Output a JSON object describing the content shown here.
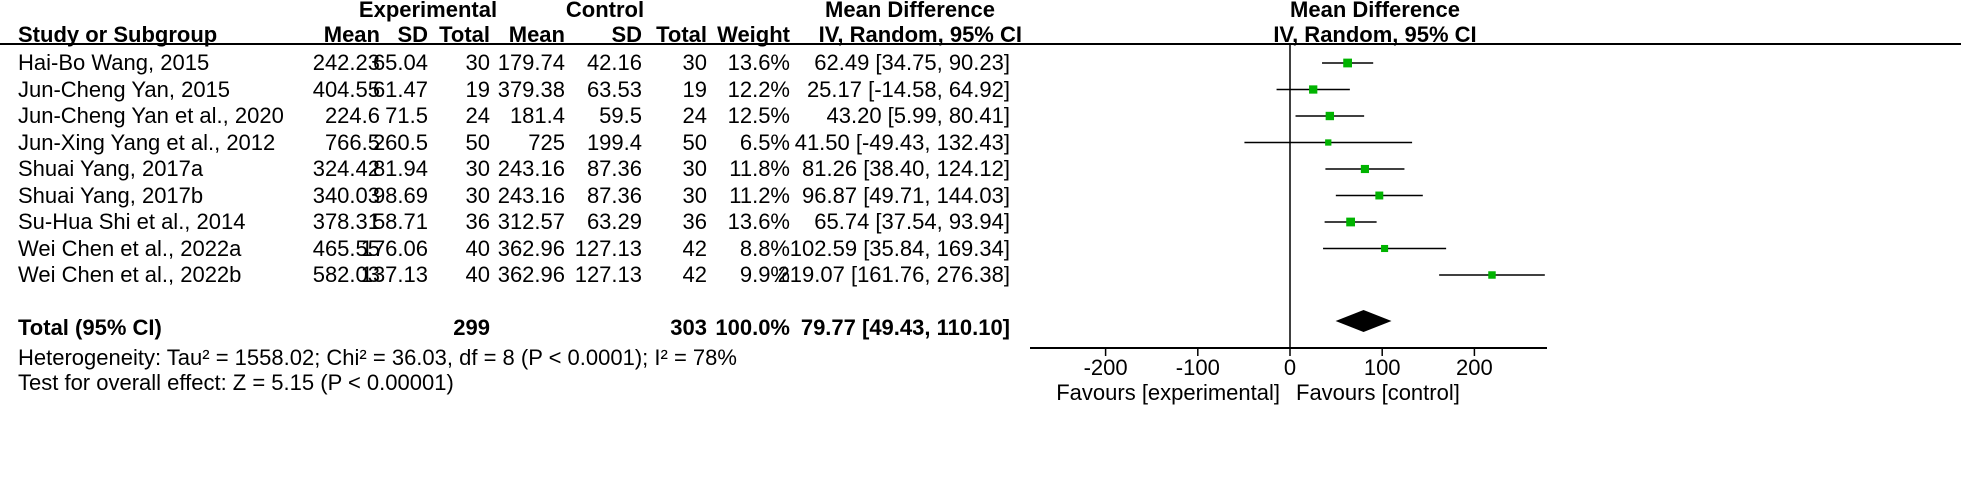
{
  "headers": {
    "experimental": "Experimental",
    "control": "Control",
    "study": "Study or Subgroup",
    "mean": "Mean",
    "sd": "SD",
    "total": "Total",
    "weight": "Weight",
    "md": "Mean Difference",
    "md_method": "IV, Random, 95% CI",
    "plot_title": "Mean Difference",
    "plot_method": "IV, Random, 95% CI"
  },
  "studies": [
    {
      "name": "Hai-Bo Wang, 2015",
      "e_mean": "242.23",
      "e_sd": "65.04",
      "e_total": "30",
      "c_mean": "179.74",
      "c_sd": "42.16",
      "c_total": "30",
      "weight": "13.6%",
      "ci": "62.49 [34.75, 90.23]"
    },
    {
      "name": "Jun-Cheng Yan, 2015",
      "e_mean": "404.55",
      "e_sd": "61.47",
      "e_total": "19",
      "c_mean": "379.38",
      "c_sd": "63.53",
      "c_total": "19",
      "weight": "12.2%",
      "ci": "25.17 [-14.58, 64.92]"
    },
    {
      "name": "Jun-Cheng Yan et al., 2020",
      "e_mean": "224.6",
      "e_sd": "71.5",
      "e_total": "24",
      "c_mean": "181.4",
      "c_sd": "59.5",
      "c_total": "24",
      "weight": "12.5%",
      "ci": "43.20 [5.99, 80.41]"
    },
    {
      "name": "Jun-Xing Yang et al., 2012",
      "e_mean": "766.5",
      "e_sd": "260.5",
      "e_total": "50",
      "c_mean": "725",
      "c_sd": "199.4",
      "c_total": "50",
      "weight": "6.5%",
      "ci": "41.50 [-49.43, 132.43]"
    },
    {
      "name": "Shuai Yang, 2017a",
      "e_mean": "324.42",
      "e_sd": "81.94",
      "e_total": "30",
      "c_mean": "243.16",
      "c_sd": "87.36",
      "c_total": "30",
      "weight": "11.8%",
      "ci": "81.26 [38.40, 124.12]"
    },
    {
      "name": "Shuai Yang, 2017b",
      "e_mean": "340.03",
      "e_sd": "98.69",
      "e_total": "30",
      "c_mean": "243.16",
      "c_sd": "87.36",
      "c_total": "30",
      "weight": "11.2%",
      "ci": "96.87 [49.71, 144.03]"
    },
    {
      "name": "Su-Hua Shi et al., 2014",
      "e_mean": "378.31",
      "e_sd": "58.71",
      "e_total": "36",
      "c_mean": "312.57",
      "c_sd": "63.29",
      "c_total": "36",
      "weight": "13.6%",
      "ci": "65.74 [37.54, 93.94]"
    },
    {
      "name": "Wei Chen et al., 2022a",
      "e_mean": "465.55",
      "e_sd": "176.06",
      "e_total": "40",
      "c_mean": "362.96",
      "c_sd": "127.13",
      "c_total": "42",
      "weight": "8.8%",
      "ci": "102.59 [35.84, 169.34]"
    },
    {
      "name": "Wei Chen et al., 2022b",
      "e_mean": "582.03",
      "e_sd": "137.13",
      "e_total": "40",
      "c_mean": "362.96",
      "c_sd": "127.13",
      "c_total": "42",
      "weight": "9.9%",
      "ci": "219.07 [161.76, 276.38]"
    }
  ],
  "total": {
    "label": "Total (95% CI)",
    "e_total": "299",
    "c_total": "303",
    "weight": "100.0%",
    "ci": "79.77 [49.43, 110.10]"
  },
  "heterogeneity": "Heterogeneity: Tau² = 1558.02; Chi² = 36.03, df = 8 (P < 0.0001); I² = 78%",
  "overall_effect": "Test for overall effect: Z = 5.15 (P < 0.00001)",
  "favours": {
    "left": "Favours [experimental]",
    "right": "Favours [control]"
  },
  "chart_data": {
    "type": "scatter",
    "title": "Mean Difference",
    "subtitle": "IV, Random, 95% CI",
    "xlim": [
      -250,
      280
    ],
    "ticks": [
      -200,
      -100,
      0,
      100,
      200
    ],
    "tick_labels": [
      "-200",
      "-100",
      "0",
      "100",
      "200"
    ],
    "xlabel_left": "Favours [experimental]",
    "xlabel_right": "Favours [control]",
    "studies": [
      {
        "name": "Hai-Bo Wang, 2015",
        "md": 62.49,
        "lower": 34.75,
        "upper": 90.23,
        "weight": 13.6
      },
      {
        "name": "Jun-Cheng Yan, 2015",
        "md": 25.17,
        "lower": -14.58,
        "upper": 64.92,
        "weight": 12.2
      },
      {
        "name": "Jun-Cheng Yan et al., 2020",
        "md": 43.2,
        "lower": 5.99,
        "upper": 80.41,
        "weight": 12.5
      },
      {
        "name": "Jun-Xing Yang et al., 2012",
        "md": 41.5,
        "lower": -49.43,
        "upper": 132.43,
        "weight": 6.5
      },
      {
        "name": "Shuai Yang, 2017a",
        "md": 81.26,
        "lower": 38.4,
        "upper": 124.12,
        "weight": 11.8
      },
      {
        "name": "Shuai Yang, 2017b",
        "md": 96.87,
        "lower": 49.71,
        "upper": 144.03,
        "weight": 11.2
      },
      {
        "name": "Su-Hua Shi et al., 2014",
        "md": 65.74,
        "lower": 37.54,
        "upper": 93.94,
        "weight": 13.6
      },
      {
        "name": "Wei Chen et al., 2022a",
        "md": 102.59,
        "lower": 35.84,
        "upper": 169.34,
        "weight": 8.8
      },
      {
        "name": "Wei Chen et al., 2022b",
        "md": 219.07,
        "lower": 161.76,
        "upper": 276.38,
        "weight": 9.9
      }
    ],
    "pooled": {
      "md": 79.77,
      "lower": 49.43,
      "upper": 110.1
    },
    "marker_color": "#00b300",
    "diamond_color": "#000000"
  }
}
